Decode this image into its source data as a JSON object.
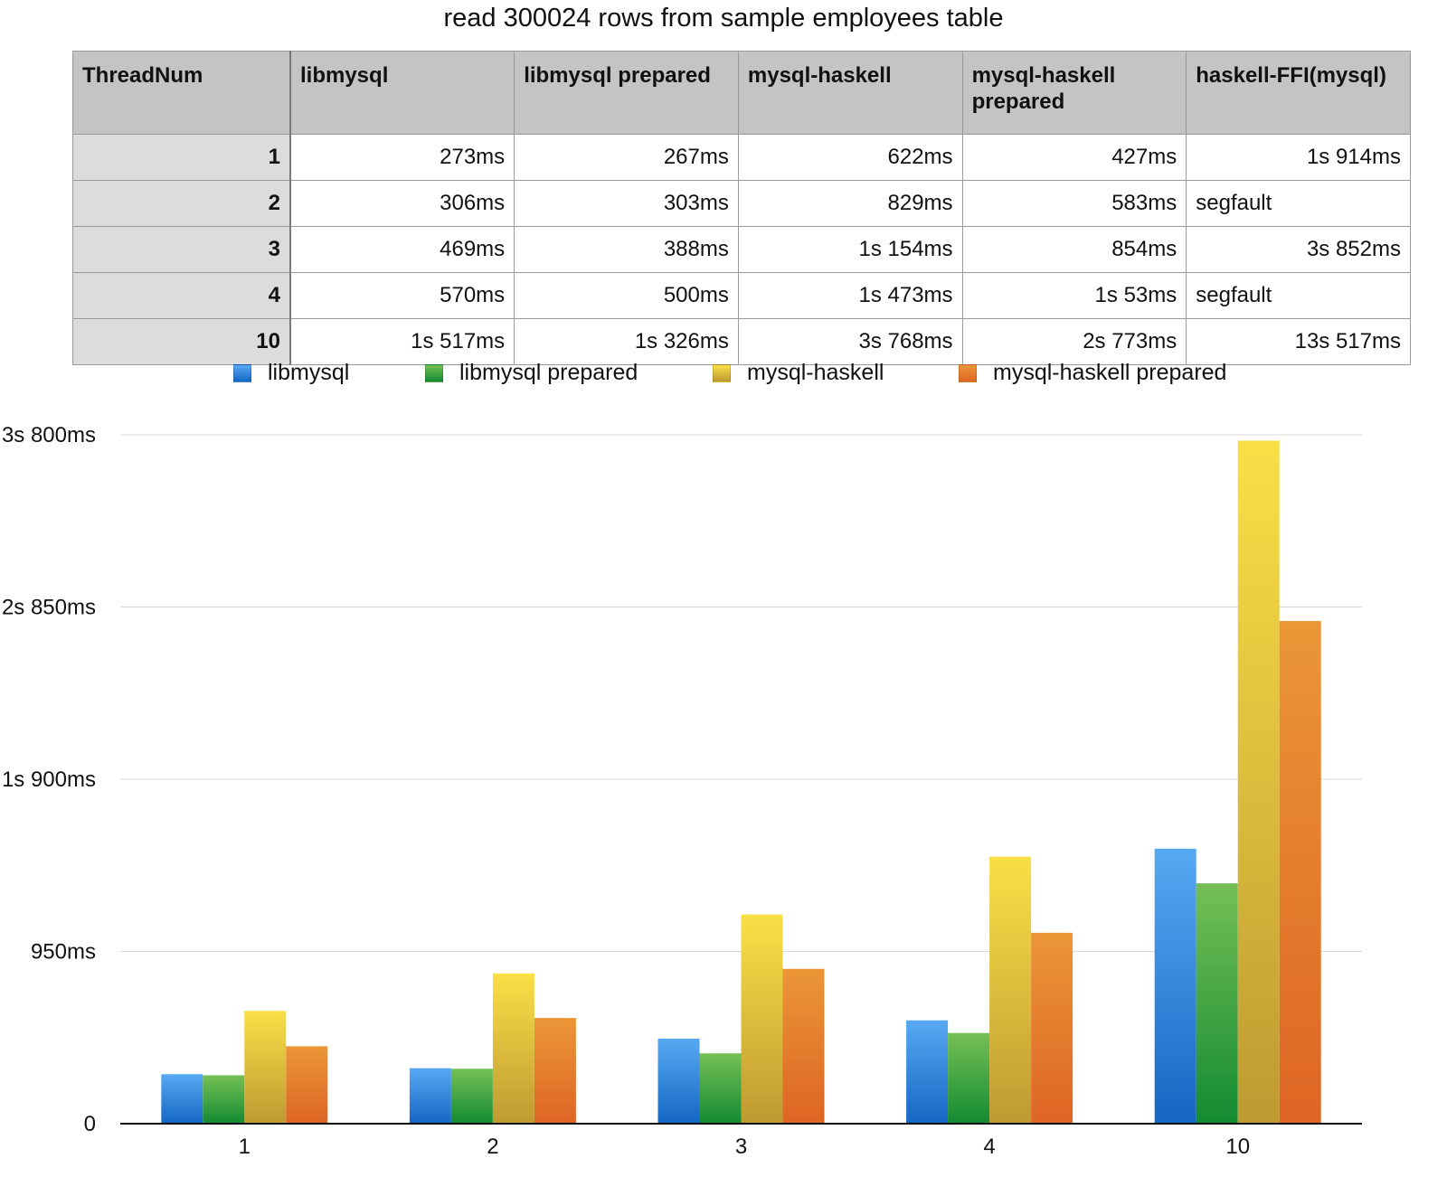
{
  "chart_data": [
    {
      "type": "table",
      "title": "read 300024 rows from sample employees table",
      "columns": [
        "ThreadNum",
        "libmysql",
        "libmysql prepared",
        "mysql-haskell",
        "mysql-haskell prepared",
        "haskell-FFI(mysql)"
      ],
      "rows": [
        [
          "1",
          "273ms",
          "267ms",
          "622ms",
          "427ms",
          "1s 914ms"
        ],
        [
          "2",
          "306ms",
          "303ms",
          "829ms",
          "583ms",
          "segfault"
        ],
        [
          "3",
          "469ms",
          "388ms",
          "1s 154ms",
          "854ms",
          "3s 852ms"
        ],
        [
          "4",
          "570ms",
          "500ms",
          "1s 473ms",
          "1s 53ms",
          "segfault"
        ],
        [
          "10",
          "1s 517ms",
          "1s 326ms",
          "3s 768ms",
          "2s 773ms",
          "13s 517ms"
        ]
      ]
    },
    {
      "type": "bar",
      "categories": [
        "1",
        "2",
        "3",
        "4",
        "10"
      ],
      "series": [
        {
          "name": "libmysql",
          "values": [
            273,
            306,
            469,
            570,
            1517
          ]
        },
        {
          "name": "libmysql prepared",
          "values": [
            267,
            303,
            388,
            500,
            1326
          ]
        },
        {
          "name": "mysql-haskell",
          "values": [
            622,
            829,
            1154,
            1473,
            3768
          ]
        },
        {
          "name": "mysql-haskell prepared",
          "values": [
            427,
            583,
            854,
            1053,
            2773
          ]
        }
      ],
      "ylim": [
        0,
        3800
      ],
      "yticks": [
        0,
        950,
        1900,
        2850,
        3800
      ],
      "ytick_labels": [
        "0",
        "950ms",
        "1s 900ms",
        "2s 850ms",
        "3s 800ms"
      ],
      "legend": "top-center",
      "grid": true,
      "colors": [
        {
          "top": "#57a9f2",
          "bottom": "#1566c4"
        },
        {
          "top": "#75c055",
          "bottom": "#138a32"
        },
        {
          "top": "#fadf46",
          "bottom": "#bf9a32"
        },
        {
          "top": "#eb9637",
          "bottom": "#de6524"
        }
      ]
    }
  ]
}
